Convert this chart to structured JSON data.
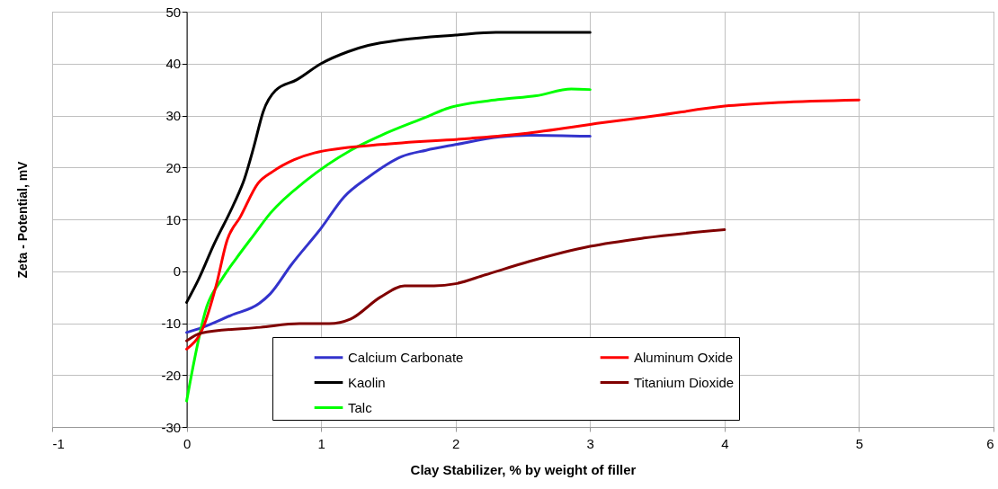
{
  "chart_data": {
    "type": "line",
    "xlabel": "Clay Stabilizer, % by weight of filler",
    "ylabel": "Zeta - Potential, mV",
    "xlim": [
      -1,
      6
    ],
    "xticks": [
      -1,
      0,
      1,
      2,
      3,
      4,
      5,
      6
    ],
    "ylim": [
      -30,
      50
    ],
    "yticks": [
      -30,
      -20,
      -10,
      0,
      10,
      20,
      30,
      40,
      50
    ],
    "grid": true,
    "legend": "bottom",
    "series": [
      {
        "name": "Calcium Carbonate",
        "color": "#3333cc",
        "x": [
          0,
          0.12,
          0.33,
          0.54,
          0.62,
          0.78,
          1.0,
          1.17,
          1.35,
          1.6,
          1.78,
          2.0,
          2.33,
          2.55,
          3
        ],
        "values": [
          -11.8,
          -10.8,
          -8.5,
          -6.2,
          -4.4,
          1.3,
          8.3,
          14.3,
          18.1,
          22.1,
          23.3,
          24.4,
          25.9,
          26.2,
          26
        ]
      },
      {
        "name": "Kaolin",
        "color": "#000000",
        "x": [
          0,
          0.09,
          0.2,
          0.35,
          0.43,
          0.5,
          0.57,
          0.66,
          0.82,
          1.0,
          1.2,
          1.35,
          1.6,
          2.0,
          2.3,
          3.0
        ],
        "values": [
          -6,
          -1.5,
          5,
          12.9,
          17.8,
          24,
          30.8,
          34.8,
          36.9,
          40,
          42.3,
          43.5,
          44.6,
          45.5,
          46,
          46
        ]
      },
      {
        "name": "Talc",
        "color": "#00ff00",
        "x": [
          0,
          0.15,
          0.26,
          0.37,
          0.5,
          0.62,
          0.89,
          1.22,
          1.44,
          1.8,
          1.93,
          2.33,
          2.6,
          2.86,
          3
        ],
        "values": [
          -25,
          -6.8,
          -1.6,
          2.5,
          7,
          11.1,
          17.5,
          23.3,
          26.1,
          29.9,
          31.3,
          33.1,
          33.8,
          35.1,
          35
        ]
      },
      {
        "name": "Aluminum Oxide",
        "color": "#ff0000",
        "x": [
          0,
          0.12,
          0.22,
          0.3,
          0.4,
          0.53,
          0.64,
          0.8,
          0.95,
          1.44,
          2.11,
          2.5,
          3.09,
          3.5,
          4,
          4.4,
          5
        ],
        "values": [
          -15,
          -11,
          -2.7,
          5.9,
          10.5,
          16.9,
          19.2,
          21.5,
          22.8,
          24.4,
          25.6,
          26.5,
          28.6,
          30,
          31.8,
          32.5,
          33
        ]
      },
      {
        "name": "Titanium Dioxide",
        "color": "#800000",
        "x": [
          0,
          0.11,
          0.55,
          0.84,
          1.06,
          1.22,
          1.44,
          1.62,
          1.84,
          2.0,
          2.22,
          2.55,
          3.0,
          3.4,
          4
        ],
        "values": [
          -13.4,
          -11.9,
          -10.8,
          -10.1,
          -10.1,
          -9.2,
          -5,
          -2.8,
          -2.8,
          -2.4,
          -0.7,
          1.9,
          4.8,
          6.4,
          8
        ]
      }
    ]
  }
}
